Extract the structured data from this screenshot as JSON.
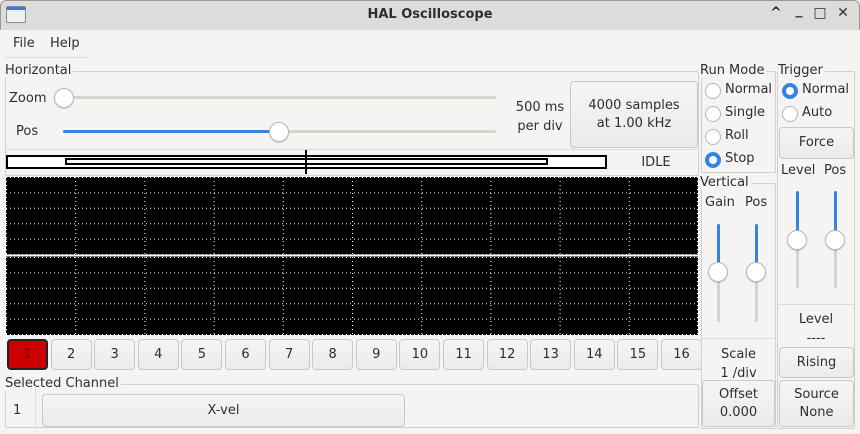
{
  "window": {
    "title": "HAL Oscilloscope",
    "controls": [
      "^",
      "_",
      "□",
      "✕"
    ]
  },
  "menu": [
    "File",
    "Help"
  ],
  "horizontal": {
    "label": "Horizontal",
    "zoom_label": "Zoom",
    "pos_label": "Pos",
    "zoom_value": 0,
    "pos_value": 0.5,
    "per_div_line1": "500 ms",
    "per_div_line2": "per div",
    "samples_line1": "4000 samples",
    "samples_line2": "at 1.00 kHz",
    "status": "IDLE"
  },
  "run_mode": {
    "label": "Run Mode",
    "options": [
      "Normal",
      "Single",
      "Roll",
      "Stop"
    ],
    "selected": "Stop"
  },
  "trigger": {
    "label": "Trigger",
    "options": [
      "Normal",
      "Auto"
    ],
    "selected": "Normal",
    "force": "Force",
    "level_label": "Level",
    "pos_label": "Pos",
    "level_value": 0.5,
    "pos_value": 0.5,
    "level_title": "Level",
    "level_readout": "----",
    "edge": "Rising",
    "source_line1": "Source",
    "source_line2": "None"
  },
  "vertical": {
    "label": "Vertical",
    "gain_label": "Gain",
    "pos_label": "Pos",
    "gain_value": 0.5,
    "pos_value": 0.5,
    "scale_line1": "Scale",
    "scale_line2": "1 /div",
    "offset_line1": "Offset",
    "offset_line2": "0.000"
  },
  "channels": [
    "1",
    "2",
    "3",
    "4",
    "5",
    "6",
    "7",
    "8",
    "9",
    "10",
    "11",
    "12",
    "13",
    "14",
    "15",
    "16"
  ],
  "selected_channel": {
    "label": "Selected Channel",
    "number": "1",
    "name": "X-vel"
  },
  "colors": {
    "accent": "#3584e4",
    "selected_channel": "#cc0000",
    "scope_bg": "#000000"
  }
}
